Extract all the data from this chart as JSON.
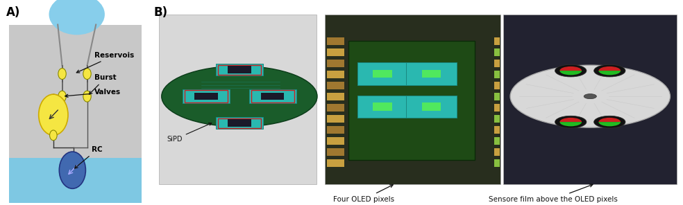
{
  "fig_width": 9.84,
  "fig_height": 2.96,
  "bg_color": "#ffffff",
  "label_A": "A)",
  "label_B": "B)",
  "annotations": {
    "reservois": "Reservois",
    "burst": "Burst",
    "valves": "Valves",
    "rc": "RC",
    "sipd": "SiPD",
    "four_oled": "Four OLED pixels",
    "sensor_film": "Sensore film above the OLED pixels"
  },
  "colors": {
    "bg_gray": "#c8c8c8",
    "bg_blue_top": "#87ceeb",
    "bg_blue_bottom": "#7ec8e3",
    "yellow_circle": "#f5e642",
    "yellow_small": "#f5e642",
    "blue_circle": "#4169b0",
    "arrow_color": "#1a1a1a",
    "pcb_green": "#1a5c2a",
    "teal": "#2ab8b0",
    "pcb_red_border": "#cc2020",
    "white_cd": "#e0e0e0",
    "sensor_red": "#cc2020",
    "sensor_green": "#22bb22",
    "photo1_bg": "#d8d8d8",
    "photo2_bg": "#2a3520",
    "photo3_bg": "#2a2a35"
  }
}
